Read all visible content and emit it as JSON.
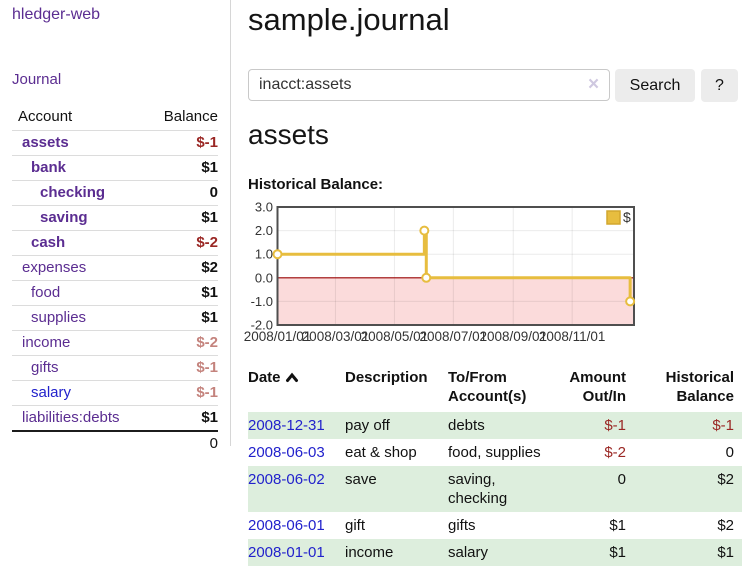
{
  "colors": {
    "purple_link": "#5b2d91",
    "blue_link": "#2222cc",
    "negative_strong": "#9a2724",
    "negative_faded": "#c4837d",
    "row_shade_green": "#ddeedd",
    "chart_line_gold": "#e7bd3f",
    "chart_negative_fill": "#fbdbdb",
    "chart_zero_line": "#990000",
    "button_bg": "#ececec"
  },
  "sidebar": {
    "app_title": "hledger-web",
    "journal_link": "Journal",
    "accounts_table": {
      "account_header": "Account",
      "balance_header": "Balance",
      "rows": [
        {
          "name": "assets",
          "indent": 0,
          "bold": true,
          "link_color": "purple",
          "balance": "$-1",
          "balance_style": "neg-strong"
        },
        {
          "name": "bank",
          "indent": 1,
          "bold": true,
          "link_color": "purple",
          "balance": "$1",
          "balance_style": "pos"
        },
        {
          "name": "checking",
          "indent": 2,
          "bold": true,
          "link_color": "purple",
          "balance": "0",
          "balance_style": "pos"
        },
        {
          "name": "saving",
          "indent": 2,
          "bold": true,
          "link_color": "purple",
          "balance": "$1",
          "balance_style": "pos"
        },
        {
          "name": "cash",
          "indent": 1,
          "bold": true,
          "link_color": "purple",
          "balance": "$-2",
          "balance_style": "neg-strong"
        },
        {
          "name": "expenses",
          "indent": 0,
          "bold": false,
          "link_color": "purple",
          "balance": "$2",
          "balance_style": "pos"
        },
        {
          "name": "food",
          "indent": 1,
          "bold": false,
          "link_color": "purple",
          "balance": "$1",
          "balance_style": "pos"
        },
        {
          "name": "supplies",
          "indent": 1,
          "bold": false,
          "link_color": "purple",
          "balance": "$1",
          "balance_style": "pos"
        },
        {
          "name": "income",
          "indent": 0,
          "bold": false,
          "link_color": "purple",
          "balance": "$-2",
          "balance_style": "neg-faded"
        },
        {
          "name": "gifts",
          "indent": 1,
          "bold": false,
          "link_color": "purple",
          "balance": "$-1",
          "balance_style": "neg-faded"
        },
        {
          "name": "salary",
          "indent": 1,
          "bold": false,
          "link_color": "blue",
          "balance": "$-1",
          "balance_style": "neg-faded"
        },
        {
          "name": "liabilities:debts",
          "indent": 0,
          "bold": false,
          "link_color": "purple",
          "balance": "$1",
          "balance_style": "pos"
        }
      ],
      "total": "0"
    }
  },
  "main": {
    "title": "sample.journal",
    "search": {
      "value": "inacct:assets",
      "clear_icon": "×",
      "search_button": "Search",
      "help_button": "?"
    },
    "account_heading": "assets",
    "chart_title": "Historical Balance:",
    "register": {
      "headers": {
        "date": "Date",
        "description": "Description",
        "accounts": "To/From Account(s)",
        "amount": "Amount Out/In",
        "balance": "Historical Balance"
      },
      "rows": [
        {
          "date": "2008-12-31",
          "description": "pay off",
          "accounts": "debts",
          "amount": "$-1",
          "amount_negative": true,
          "balance": "$-1",
          "balance_negative": true,
          "shaded": true
        },
        {
          "date": "2008-06-03",
          "description": "eat & shop",
          "accounts": "food, supplies",
          "amount": "$-2",
          "amount_negative": true,
          "balance": "0",
          "balance_negative": false,
          "shaded": false
        },
        {
          "date": "2008-06-02",
          "description": "save",
          "accounts": "saving, checking",
          "amount": "0",
          "amount_negative": false,
          "balance": "$2",
          "balance_negative": false,
          "shaded": true
        },
        {
          "date": "2008-06-01",
          "description": "gift",
          "accounts": "gifts",
          "amount": "$1",
          "amount_negative": false,
          "balance": "$2",
          "balance_negative": false,
          "shaded": false
        },
        {
          "date": "2008-01-01",
          "description": "income",
          "accounts": "salary",
          "amount": "$1",
          "amount_negative": false,
          "balance": "$1",
          "balance_negative": false,
          "shaded": true
        }
      ]
    }
  },
  "chart_data": {
    "type": "line",
    "step": true,
    "title": "Historical Balance:",
    "series": [
      {
        "name": "$",
        "color": "#e7bd3f",
        "points": [
          [
            "2008-01-01",
            1
          ],
          [
            "2008-06-01",
            2
          ],
          [
            "2008-06-03",
            0
          ],
          [
            "2008-12-31",
            -1
          ]
        ]
      }
    ],
    "y_ticks": [
      "3.0",
      "2.0",
      "1.0",
      "0.0",
      "-1.0",
      "-2.0"
    ],
    "y_values": [
      3,
      2,
      1,
      0,
      -1,
      -2
    ],
    "x_ticks": [
      {
        "label": "2008/01/01",
        "date": "2008-01-01"
      },
      {
        "label": "2008/03/01",
        "date": "2008-03-01"
      },
      {
        "label": "2008/05/01",
        "date": "2008-05-01"
      },
      {
        "label": "2008/07/01",
        "date": "2008-07-01"
      },
      {
        "label": "2008/09/01",
        "date": "2008-09-01"
      },
      {
        "label": "2008/11/01",
        "date": "2008-11-01"
      }
    ],
    "ylim": [
      -2,
      3
    ],
    "xlim": [
      "2008-01-01",
      "2009-01-04"
    ],
    "grid": true,
    "legend": {
      "label": "$",
      "position": "top-right"
    },
    "negative_region_shaded": true
  }
}
